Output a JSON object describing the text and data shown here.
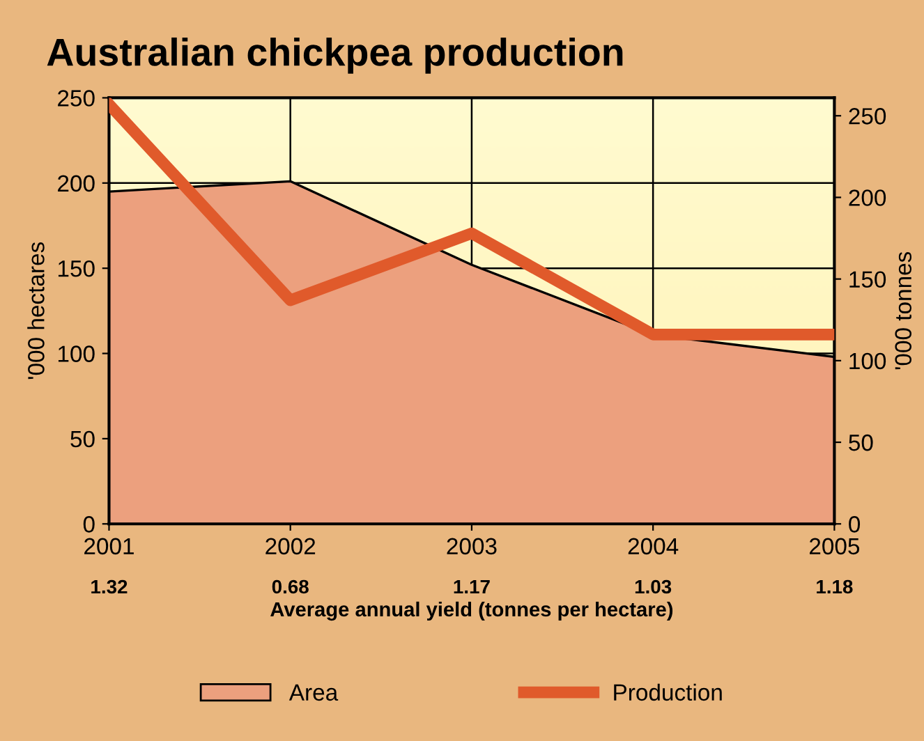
{
  "chart_data": {
    "type": "area",
    "title": "Australian chickpea production",
    "xlabel": "Average annual yield (tonnes per hectare)",
    "ylabel": "'000 hectares",
    "y2label": "'000 tonnes",
    "categories": [
      "2001",
      "2002",
      "2003",
      "2004",
      "2005"
    ],
    "series": [
      {
        "name": "Area",
        "color": "#eca07e",
        "values": [
          195,
          201,
          152,
          111,
          98
        ]
      },
      {
        "name": "Production",
        "type": "line",
        "axis": "y2",
        "color": "#e05a2b",
        "values": [
          257,
          137,
          178,
          116,
          116
        ]
      }
    ],
    "ylim": [
      0,
      250
    ],
    "yticks": [
      0,
      50,
      100,
      150,
      200,
      250
    ],
    "y2lim": [
      0,
      261
    ],
    "y2ticks": [
      0,
      50,
      100,
      150,
      200,
      250
    ],
    "annotations": [
      "1.32",
      "0.68",
      "1.17",
      "1.03",
      "1.18"
    ],
    "grid": true,
    "legend": "bottom"
  }
}
